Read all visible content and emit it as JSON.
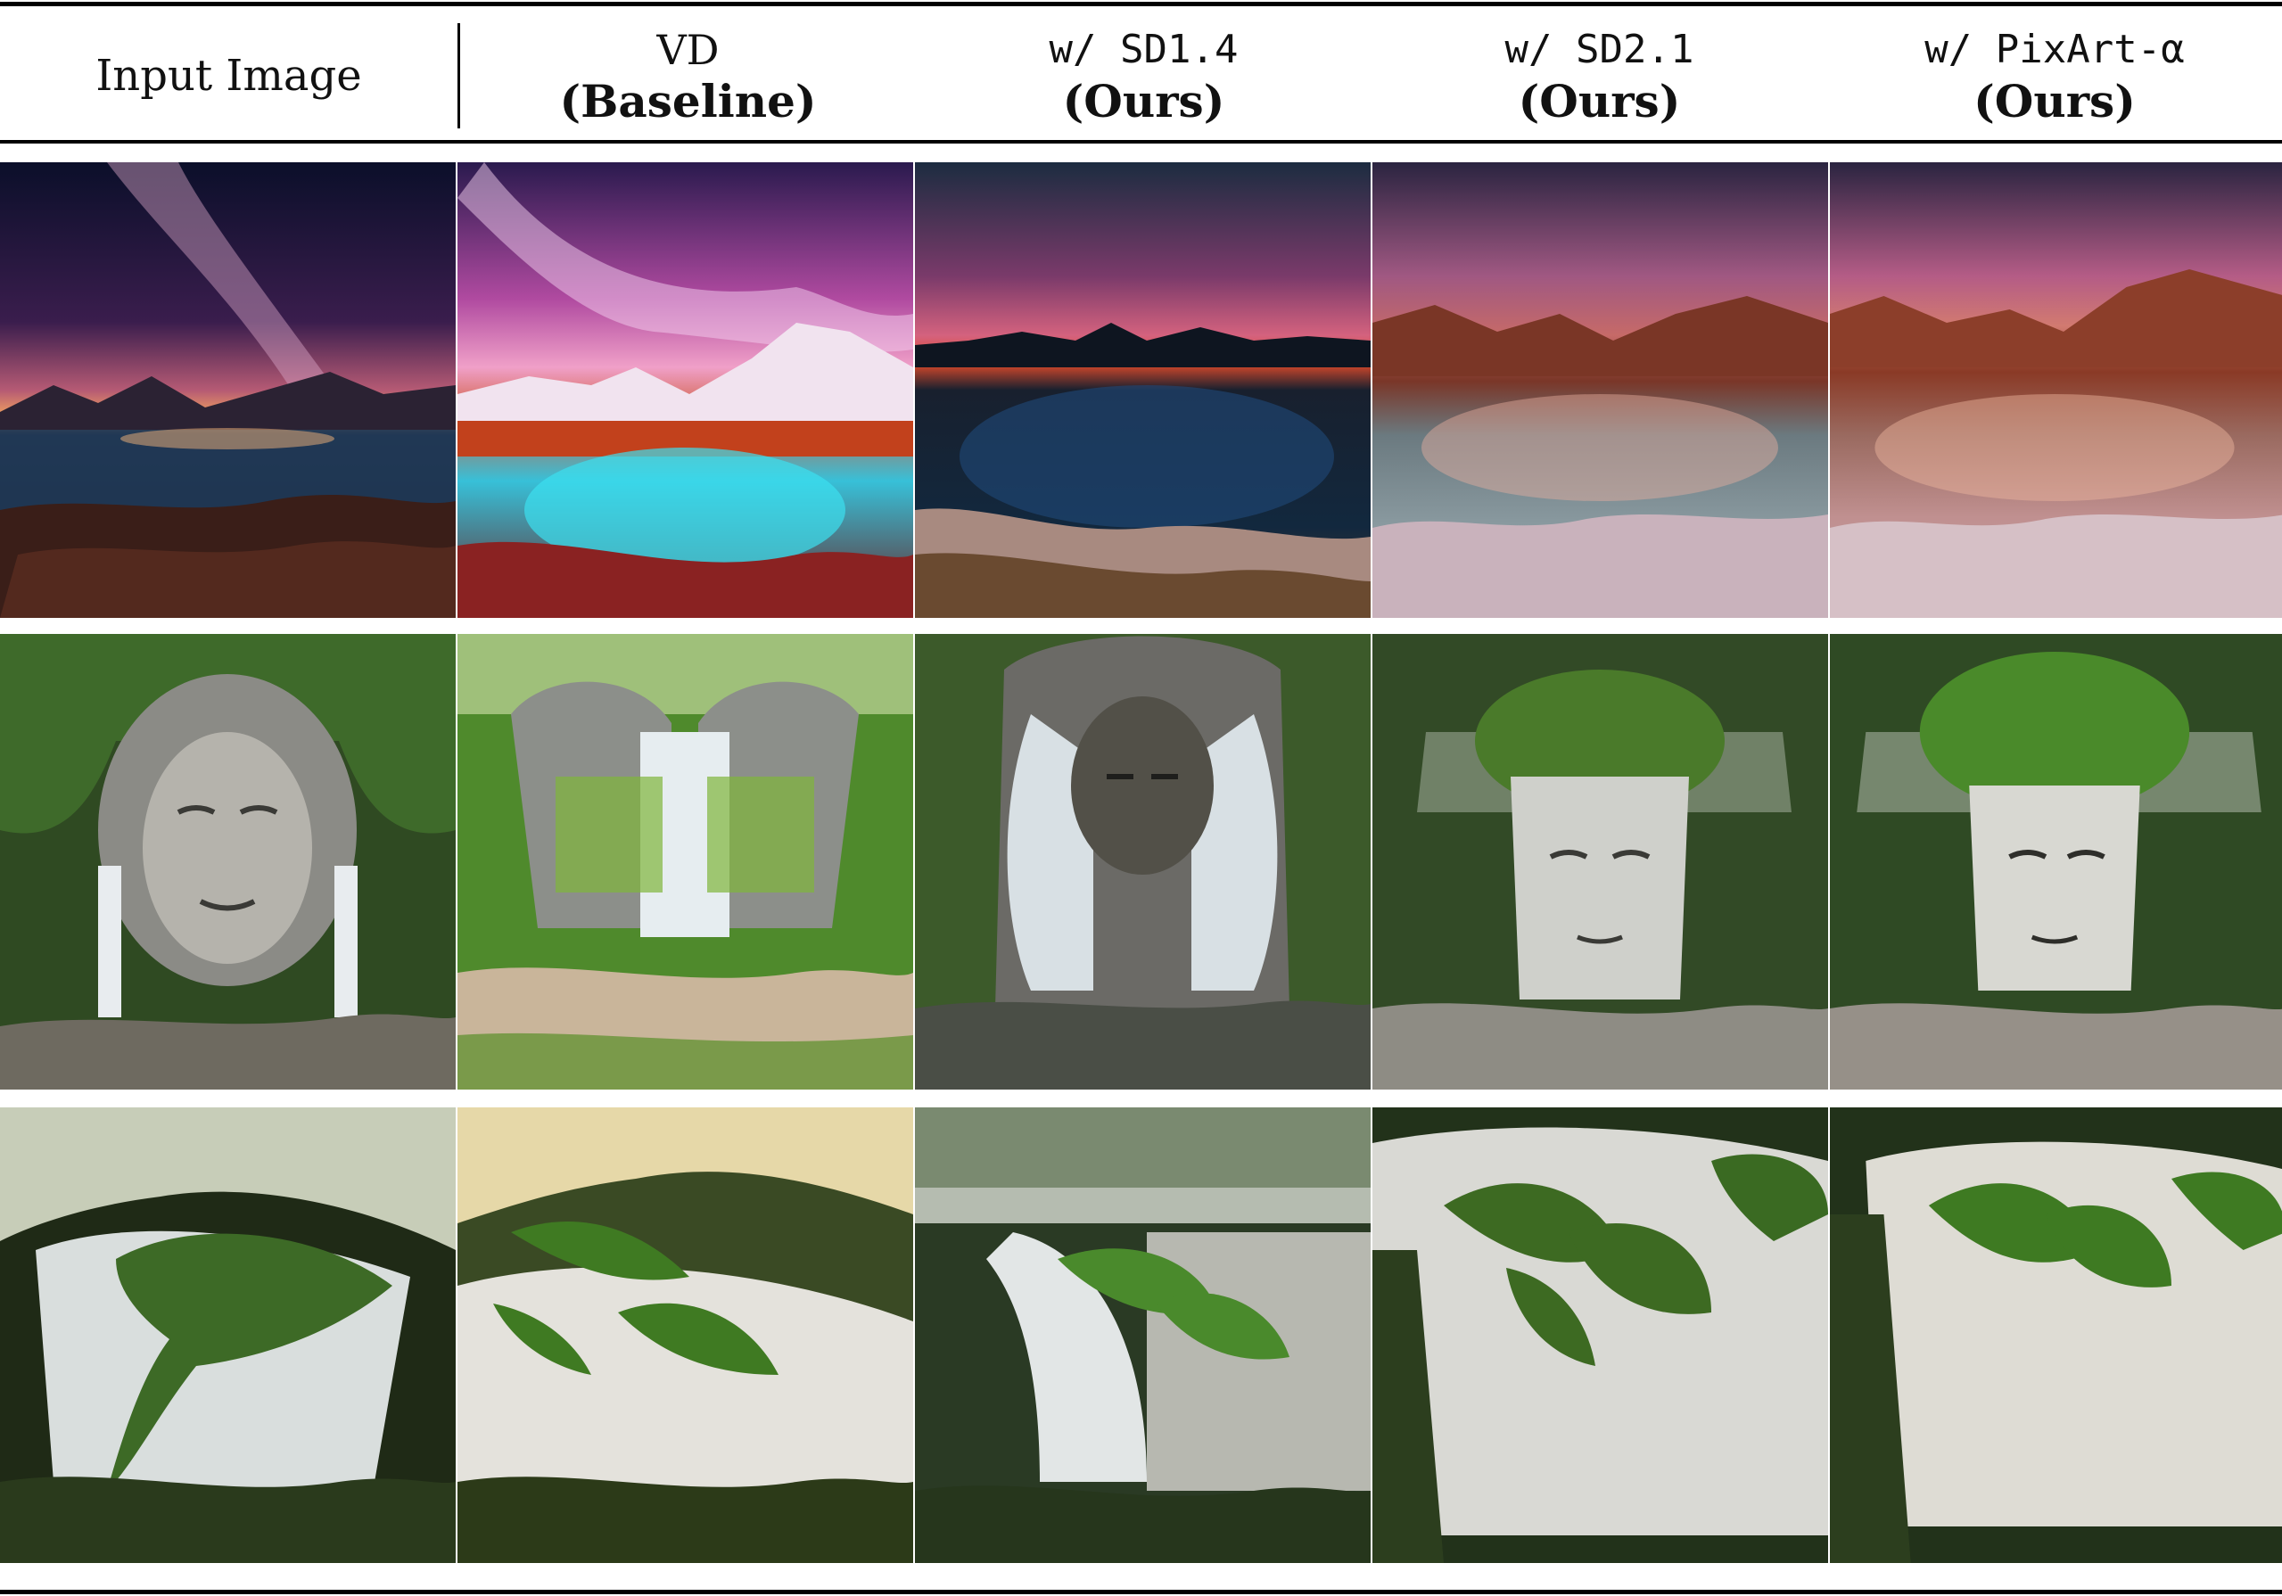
{
  "header": {
    "input_label": "Input Image",
    "columns": [
      {
        "line1": "VD",
        "line2": "(Baseline)",
        "mono": false
      },
      {
        "line1": "w/ SD1.4",
        "line2": "(Ours)",
        "mono": true
      },
      {
        "line1": "w/ SD2.1",
        "line2": "(Ours)",
        "mono": true
      },
      {
        "line1": "w/ PixArt-α",
        "line2": "(Ours)",
        "mono": true
      }
    ]
  },
  "rows": [
    {
      "scene": "night-sky-mountain-lake",
      "images": [
        "input-image",
        "vd-baseline",
        "sd14-ours",
        "sd21-ours",
        "pixart-ours"
      ]
    },
    {
      "scene": "waterfall-face-sculpture",
      "images": [
        "input-image",
        "vd-baseline",
        "sd14-ours",
        "sd21-ours",
        "pixart-ours"
      ]
    },
    {
      "scene": "leaf-waterfall",
      "images": [
        "input-image",
        "vd-baseline",
        "sd14-ours",
        "sd21-ours",
        "pixart-ours"
      ]
    }
  ]
}
